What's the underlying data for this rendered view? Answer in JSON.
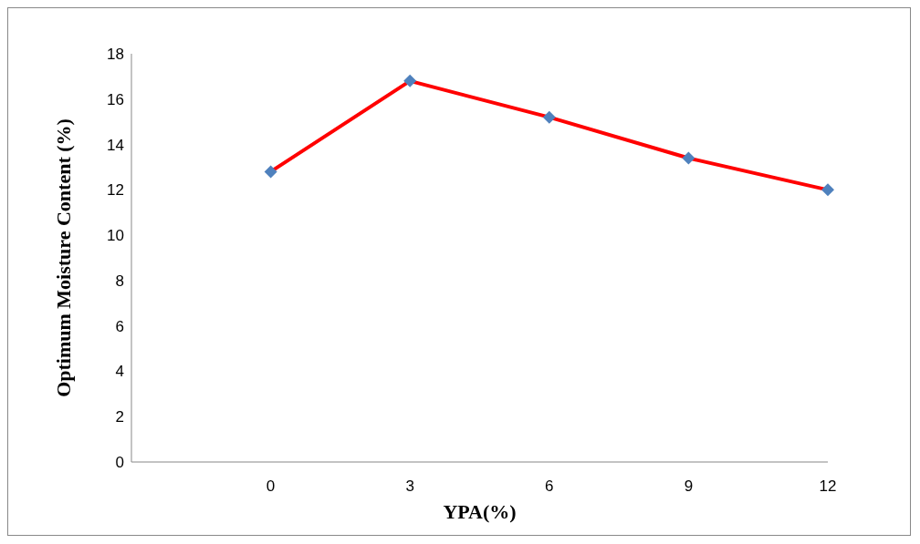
{
  "chart_data": {
    "type": "line",
    "xlabel": "YPA(%)",
    "ylabel": "Optimum Moisture Content (%)",
    "categories": [
      null,
      "0",
      "3",
      "6",
      "9",
      "12"
    ],
    "series": [
      {
        "color": "#ff0000",
        "values": [
          null,
          12.8,
          16.8,
          15.2,
          13.4,
          12.0
        ]
      }
    ],
    "marker": "diamond",
    "line_style": "solid",
    "ylim": [
      0,
      18
    ],
    "yticks": [
      0,
      2,
      4,
      6,
      8,
      10,
      12,
      14,
      16,
      18
    ],
    "grid": false,
    "legend": false
  }
}
